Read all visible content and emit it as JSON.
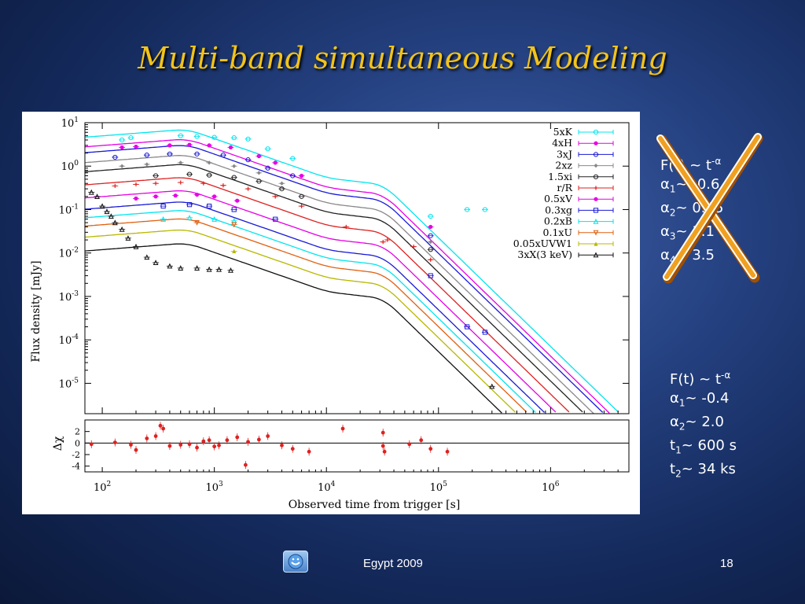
{
  "slide": {
    "title": "Multi-band simultaneous Modeling",
    "footer": "Egypt 2009",
    "page_number": "18",
    "footer_icon": "smiley-icon"
  },
  "old_fit": {
    "crossed_out": true,
    "lines": [
      {
        "lead": "F(t) ~ t",
        "sup": "-α"
      },
      {
        "lead": "α",
        "sub": "1",
        "rest": "~ -0.6"
      },
      {
        "lead": "α",
        "sub": "2",
        "rest": "~ 0.15"
      },
      {
        "lead": "α",
        "sub": "3",
        "rest": "~ 1.1"
      },
      {
        "lead": "α",
        "sub": "4",
        "rest": "~ 3.5"
      }
    ]
  },
  "new_fit": {
    "lines": [
      {
        "lead": "F(t) ~ t",
        "sup": "-α"
      },
      {
        "lead": "α",
        "sub": "1",
        "rest": "~ -0.4"
      },
      {
        "lead": "α",
        "sub": "2",
        "rest": "~ 2.0"
      },
      {
        "lead": "t",
        "sub": "1",
        "rest": "~ 600 s"
      },
      {
        "lead": "t",
        "sub": "2",
        "rest": "~ 34 ks"
      }
    ]
  },
  "chart_data": {
    "type": "line",
    "xlabel": "Observed time from trigger [s]",
    "ylabel": "Flux density [mJy]",
    "residual_ylabel": "Δχ",
    "x_scale": "log",
    "y_scale": "log",
    "xlim": [
      70,
      5000000
    ],
    "ylim": [
      2e-06,
      10
    ],
    "x_ticks": [
      {
        "base": "10",
        "exp": "2",
        "value": 100
      },
      {
        "base": "10",
        "exp": "3",
        "value": 1000
      },
      {
        "base": "10",
        "exp": "4",
        "value": 10000
      },
      {
        "base": "10",
        "exp": "5",
        "value": 100000
      },
      {
        "base": "10",
        "exp": "6",
        "value": 1000000
      }
    ],
    "y_ticks": [
      {
        "base": "10",
        "exp": "1",
        "value": 10
      },
      {
        "base": "10",
        "exp": "0",
        "value": 1
      },
      {
        "base": "10",
        "exp": "-1",
        "value": 0.1
      },
      {
        "base": "10",
        "exp": "-2",
        "value": 0.01
      },
      {
        "base": "10",
        "exp": "-3",
        "value": 0.001
      },
      {
        "base": "10",
        "exp": "-4",
        "value": 0.0001
      },
      {
        "base": "10",
        "exp": "-5",
        "value": 1e-05
      }
    ],
    "residual_ticks": [
      "2",
      "0",
      "-2",
      "-4"
    ],
    "residual_ylim": [
      -5,
      4
    ],
    "legend_position": "top-right",
    "series": [
      {
        "name": "5xK",
        "color": "#00e5ee",
        "marker": "circle-open",
        "scale": 5.0,
        "points": [
          [
            150,
            4.0
          ],
          [
            180,
            4.5
          ],
          [
            500,
            5.0
          ],
          [
            700,
            4.8
          ],
          [
            1000,
            4.6
          ],
          [
            1500,
            4.5
          ],
          [
            2000,
            4.2
          ],
          [
            3000,
            2.5
          ],
          [
            5000,
            1.5
          ],
          [
            85000,
            0.07
          ],
          [
            180000,
            0.1
          ],
          [
            260000,
            0.1
          ]
        ]
      },
      {
        "name": "4xH",
        "color": "#e600e6",
        "marker": "circle-filled",
        "scale": 3.0,
        "points": [
          [
            150,
            2.7
          ],
          [
            200,
            2.8
          ],
          [
            400,
            3.0
          ],
          [
            600,
            3.1
          ],
          [
            900,
            3.0
          ],
          [
            1400,
            2.7
          ],
          [
            2500,
            1.7
          ],
          [
            3500,
            1.2
          ],
          [
            6000,
            0.6
          ],
          [
            85000,
            0.04
          ]
        ]
      },
      {
        "name": "3xJ",
        "color": "#1a1ad6",
        "marker": "circle-open",
        "scale": 2.2,
        "points": [
          [
            130,
            1.6
          ],
          [
            250,
            1.8
          ],
          [
            400,
            1.9
          ],
          [
            700,
            1.9
          ],
          [
            1200,
            1.8
          ],
          [
            2000,
            1.4
          ],
          [
            3000,
            0.9
          ],
          [
            5000,
            0.6
          ],
          [
            85000,
            0.025
          ]
        ]
      },
      {
        "name": "2xz",
        "color": "#888888",
        "marker": "diamond-filled",
        "scale": 1.3,
        "points": [
          [
            150,
            1.0
          ],
          [
            250,
            1.1
          ],
          [
            500,
            1.2
          ],
          [
            900,
            1.2
          ],
          [
            1500,
            1.0
          ],
          [
            2500,
            0.7
          ],
          [
            4000,
            0.4
          ],
          [
            85000,
            0.018
          ]
        ]
      },
      {
        "name": "1.5xi",
        "color": "#222222",
        "marker": "circle-open",
        "scale": 0.8,
        "points": [
          [
            300,
            0.6
          ],
          [
            600,
            0.65
          ],
          [
            900,
            0.62
          ],
          [
            1500,
            0.55
          ],
          [
            2500,
            0.45
          ],
          [
            4000,
            0.3
          ],
          [
            6000,
            0.2
          ],
          [
            85000,
            0.012
          ]
        ]
      },
      {
        "name": "r/R",
        "color": "#dd2222",
        "marker": "plus",
        "scale": 0.4,
        "points": [
          [
            130,
            0.35
          ],
          [
            200,
            0.38
          ],
          [
            300,
            0.4
          ],
          [
            500,
            0.42
          ],
          [
            800,
            0.4
          ],
          [
            1200,
            0.36
          ],
          [
            2000,
            0.3
          ],
          [
            3500,
            0.2
          ],
          [
            6000,
            0.12
          ],
          [
            15000,
            0.04
          ],
          [
            32000,
            0.018
          ],
          [
            35000,
            0.02
          ],
          [
            60000,
            0.014
          ],
          [
            85000,
            0.007
          ]
        ]
      },
      {
        "name": "0.5xV",
        "color": "#e600e6",
        "marker": "circle-filled",
        "scale": 0.2,
        "points": [
          [
            200,
            0.18
          ],
          [
            300,
            0.2
          ],
          [
            450,
            0.21
          ],
          [
            700,
            0.22
          ],
          [
            1000,
            0.2
          ],
          [
            1600,
            0.16
          ]
        ]
      },
      {
        "name": "0.3xg",
        "color": "#1a1ad6",
        "marker": "square-open",
        "scale": 0.11,
        "points": [
          [
            350,
            0.12
          ],
          [
            600,
            0.13
          ],
          [
            900,
            0.12
          ],
          [
            1500,
            0.1
          ],
          [
            3500,
            0.06
          ],
          [
            85000,
            0.003
          ],
          [
            180000,
            0.0002
          ],
          [
            260000,
            0.00015
          ]
        ]
      },
      {
        "name": "0.2xB",
        "color": "#00e5ee",
        "marker": "triangle-open",
        "scale": 0.07,
        "points": [
          [
            350,
            0.06
          ],
          [
            600,
            0.065
          ],
          [
            1000,
            0.06
          ],
          [
            1500,
            0.055
          ]
        ]
      },
      {
        "name": "0.1xU",
        "color": "#e06010",
        "marker": "triangle-down-open",
        "scale": 0.045,
        "points": [
          [
            700,
            0.05
          ],
          [
            1500,
            0.045
          ]
        ]
      },
      {
        "name": "0.05xUVW1",
        "color": "#b8b800",
        "marker": "triangle-filled",
        "scale": 0.025,
        "points": [
          [
            1500,
            0.011
          ]
        ]
      },
      {
        "name": "3xX(3 keV)",
        "color": "#111111",
        "marker": "triangle-open",
        "scale": 0.012,
        "points": [
          [
            80,
            0.25
          ],
          [
            90,
            0.2
          ],
          [
            100,
            0.12
          ],
          [
            110,
            0.09
          ],
          [
            120,
            0.07
          ],
          [
            130,
            0.05
          ],
          [
            150,
            0.035
          ],
          [
            170,
            0.022
          ],
          [
            200,
            0.014
          ],
          [
            250,
            0.008
          ],
          [
            300,
            0.006
          ],
          [
            400,
            0.005
          ],
          [
            500,
            0.0045
          ],
          [
            700,
            0.0045
          ],
          [
            900,
            0.0042
          ],
          [
            1100,
            0.0042
          ],
          [
            1400,
            0.004
          ],
          [
            300000,
            8.5e-06
          ]
        ]
      }
    ],
    "residuals": [
      [
        80,
        -0.2
      ],
      [
        130,
        0.1
      ],
      [
        180,
        -0.3
      ],
      [
        200,
        -1.2
      ],
      [
        250,
        0.8
      ],
      [
        300,
        1.2
      ],
      [
        330,
        3.0
      ],
      [
        350,
        2.5
      ],
      [
        400,
        -0.5
      ],
      [
        500,
        -0.3
      ],
      [
        600,
        -0.2
      ],
      [
        700,
        -0.8
      ],
      [
        800,
        0.3
      ],
      [
        900,
        0.5
      ],
      [
        1000,
        -0.6
      ],
      [
        1100,
        -0.4
      ],
      [
        1300,
        0.5
      ],
      [
        1600,
        1.0
      ],
      [
        1900,
        -3.8
      ],
      [
        2000,
        0.2
      ],
      [
        2500,
        0.6
      ],
      [
        3000,
        1.2
      ],
      [
        4000,
        -0.4
      ],
      [
        5000,
        -1.0
      ],
      [
        7000,
        -1.5
      ],
      [
        14000,
        2.5
      ],
      [
        32000,
        1.8
      ],
      [
        32000,
        -0.5
      ],
      [
        33000,
        -1.5
      ],
      [
        55000,
        -0.2
      ],
      [
        70000,
        0.5
      ],
      [
        85000,
        -1.0
      ],
      [
        120000,
        -1.5
      ]
    ]
  }
}
